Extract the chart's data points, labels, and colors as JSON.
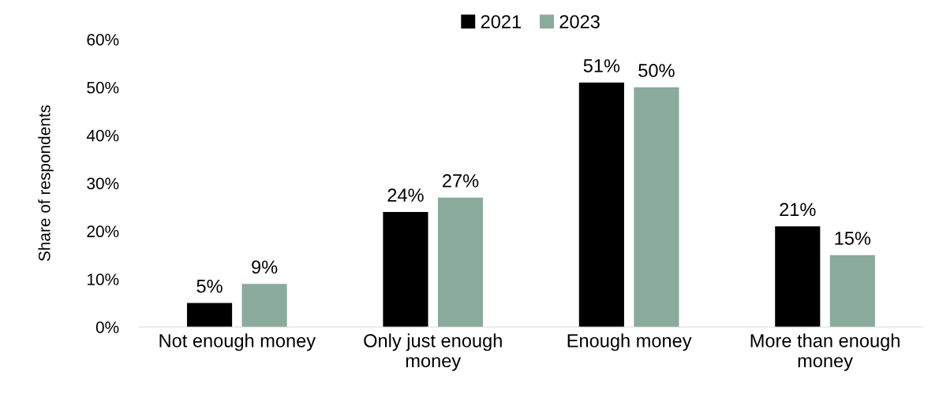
{
  "chart_data": {
    "type": "bar",
    "ylabel": "Share of respondents",
    "categories": [
      "Not enough money",
      "Only just enough money",
      "Enough money",
      "More than enough money"
    ],
    "series": [
      {
        "name": "2021",
        "color": "#000000",
        "values": [
          5,
          24,
          51,
          21
        ],
        "value_labels": [
          "5%",
          "24%",
          "51%",
          "21%"
        ]
      },
      {
        "name": "2023",
        "color": "#8aab9c",
        "values": [
          9,
          27,
          50,
          15
        ],
        "value_labels": [
          "9%",
          "27%",
          "50%",
          "15%"
        ]
      }
    ],
    "ylim": [
      0,
      60
    ],
    "yticks": [
      {
        "value": 0,
        "label": "0%"
      },
      {
        "value": 10,
        "label": "10%"
      },
      {
        "value": 20,
        "label": "20%"
      },
      {
        "value": 30,
        "label": "30%"
      },
      {
        "value": 40,
        "label": "40%"
      },
      {
        "value": 50,
        "label": "50%"
      },
      {
        "value": 60,
        "label": "60%"
      }
    ],
    "grid": false,
    "legend": "top"
  }
}
